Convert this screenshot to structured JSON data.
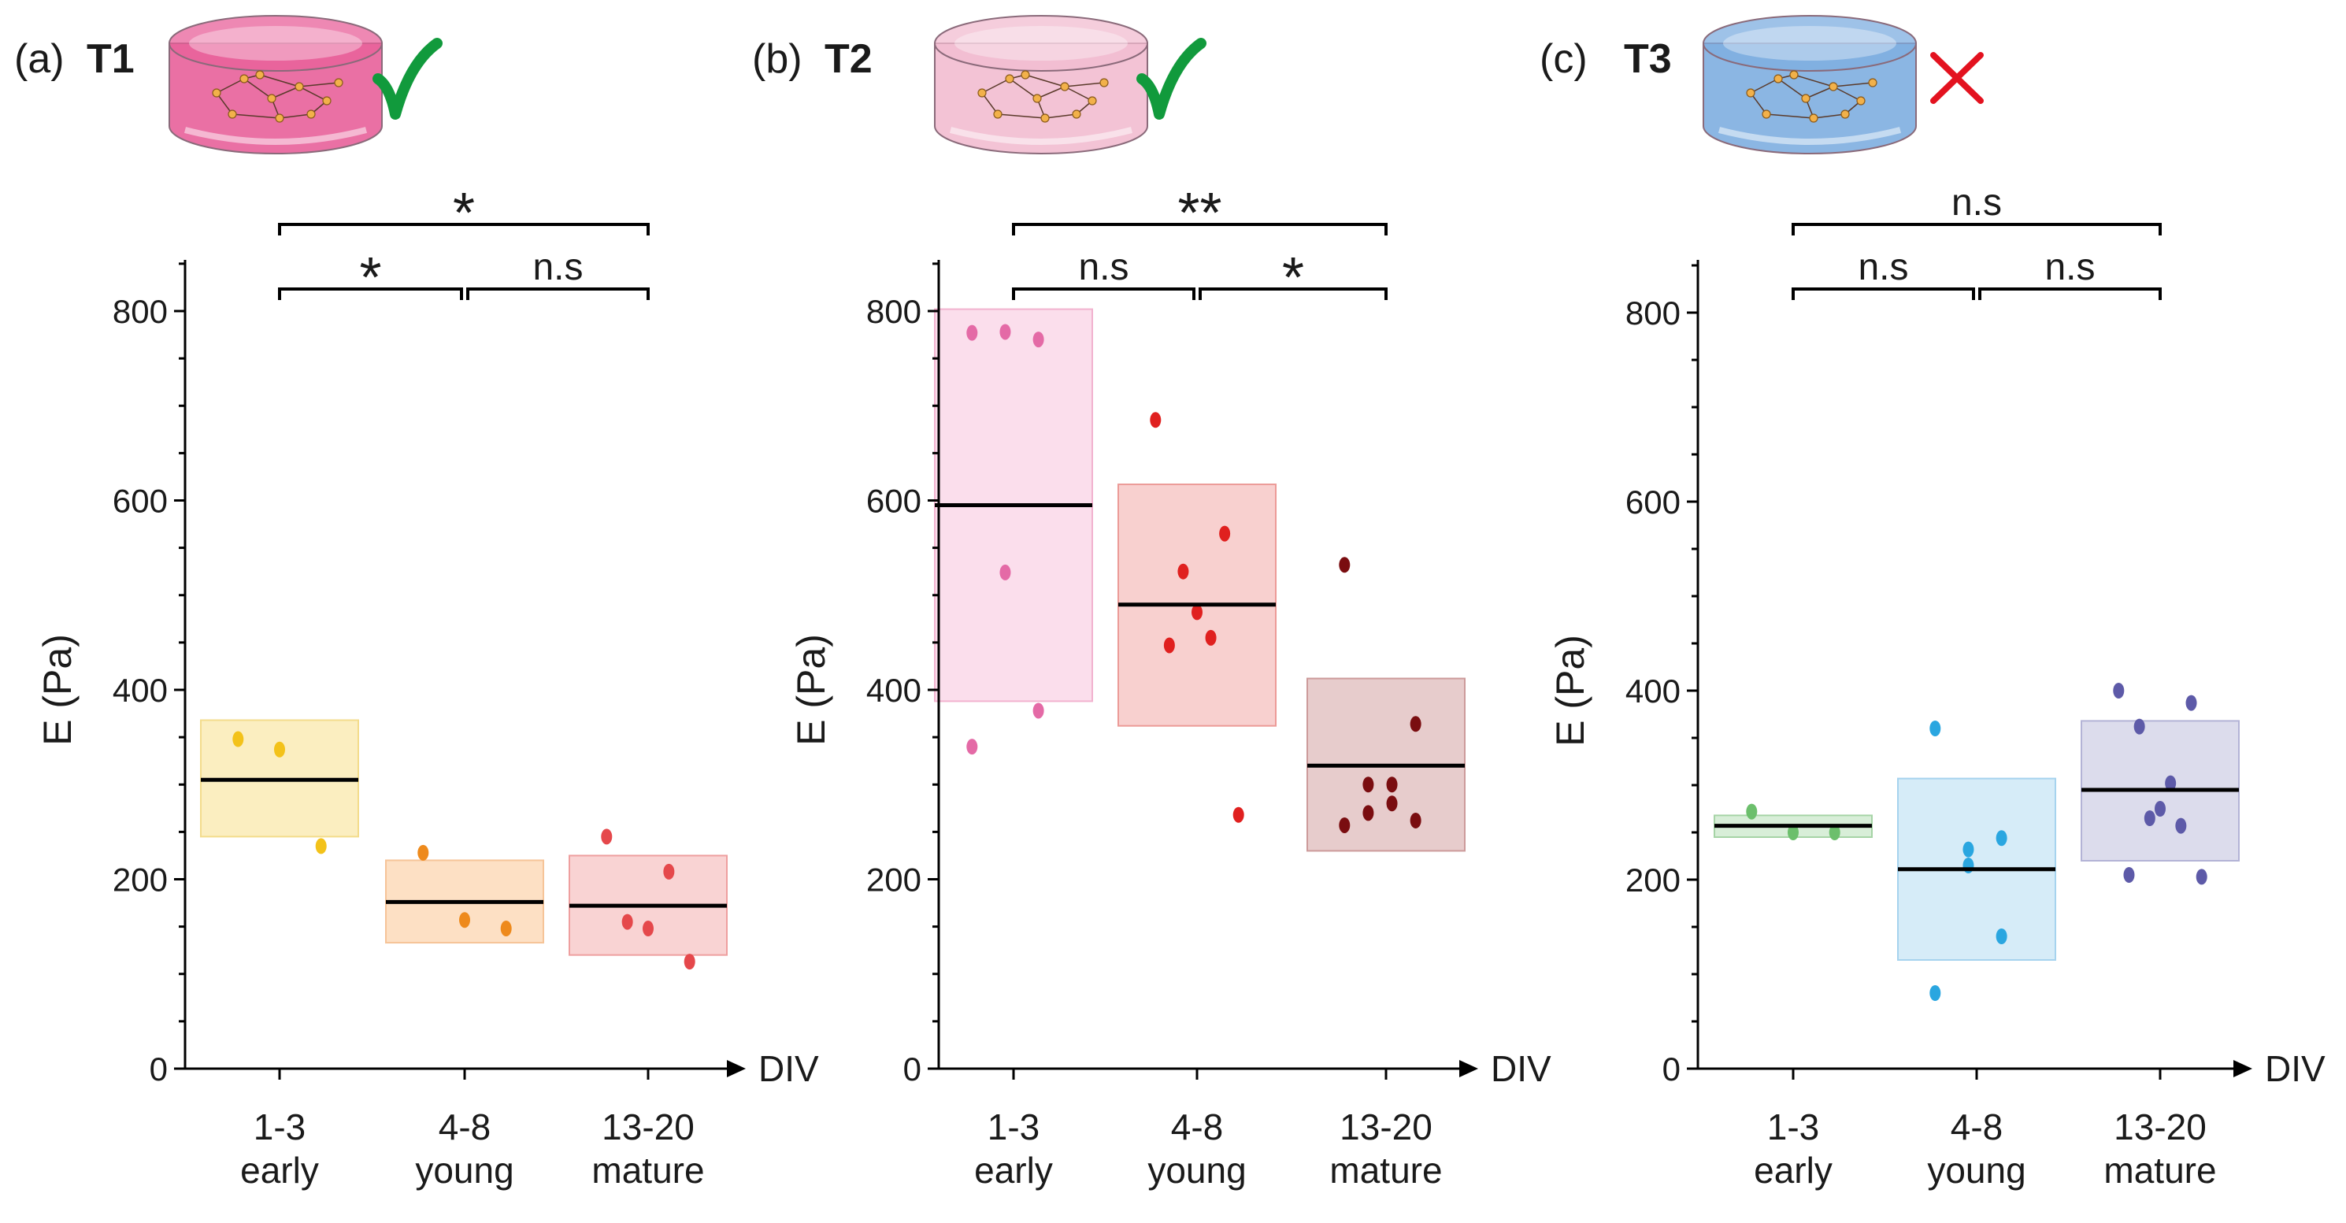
{
  "chart_data": [
    {
      "type": "box-scatter",
      "panel_label": "(a)",
      "title": "T1",
      "status": "accepted",
      "status_icon": "green-checkmark-icon",
      "scaffold_color": "#e8609a",
      "ylabel": "E (Pa)",
      "xlabel": "DIV",
      "ylim": [
        0,
        850
      ],
      "yticks": [
        0,
        200,
        400,
        600,
        800
      ],
      "categories": [
        "1-3",
        "4-8",
        "13-20"
      ],
      "category_sublabels": [
        "early",
        "young",
        "mature"
      ],
      "groups": [
        {
          "category": "1-3",
          "mean": 305,
          "box_low": 245,
          "box_high": 368,
          "fill": "#fbeec0",
          "stroke": "#f3dc8c",
          "point_color": "#f3c21a",
          "points": [
            348,
            337,
            235
          ]
        },
        {
          "category": "4-8",
          "mean": 176,
          "box_low": 133,
          "box_high": 220,
          "fill": "#fde0c4",
          "stroke": "#f6c498",
          "point_color": "#ee8a1c",
          "points": [
            228,
            157,
            148
          ]
        },
        {
          "category": "13-20",
          "mean": 172,
          "box_low": 120,
          "box_high": 225,
          "fill": "#f9d3d3",
          "stroke": "#ee9f9f",
          "point_color": "#e5484b",
          "points": [
            245,
            208,
            148,
            155,
            113
          ]
        }
      ],
      "significance": [
        {
          "from": "1-3",
          "to": "4-8",
          "label": "*",
          "level": 1
        },
        {
          "from": "4-8",
          "to": "13-20",
          "label": "n.s",
          "level": 1
        },
        {
          "from": "1-3",
          "to": "13-20",
          "label": "*",
          "level": 2
        }
      ]
    },
    {
      "type": "box-scatter",
      "panel_label": "(b)",
      "title": "T2",
      "status": "accepted",
      "status_icon": "green-checkmark-icon",
      "scaffold_color": "#f2bcd0",
      "ylabel": "E (Pa)",
      "xlabel": "DIV",
      "ylim": [
        0,
        850
      ],
      "yticks": [
        0,
        200,
        400,
        600,
        800
      ],
      "categories": [
        "1-3",
        "4-8",
        "13-20"
      ],
      "category_sublabels": [
        "early",
        "young",
        "mature"
      ],
      "groups": [
        {
          "category": "1-3",
          "mean": 595,
          "box_low": 388,
          "box_high": 802,
          "fill": "#fbdeec",
          "stroke": "#f2b2cf",
          "point_color": "#e46aa6",
          "points": [
            777,
            770,
            778,
            524,
            378,
            340
          ]
        },
        {
          "category": "4-8",
          "mean": 490,
          "box_low": 362,
          "box_high": 617,
          "fill": "#f8d0cf",
          "stroke": "#ec9a97",
          "point_color": "#e0201f",
          "points": [
            685,
            565,
            525,
            482,
            455,
            447,
            268
          ]
        },
        {
          "category": "13-20",
          "mean": 320,
          "box_low": 230,
          "box_high": 412,
          "fill": "#e7cccc",
          "stroke": "#cc9a9a",
          "point_color": "#7a0d10",
          "points": [
            532,
            364,
            300,
            300,
            280,
            270,
            262,
            257
          ]
        }
      ],
      "significance": [
        {
          "from": "1-3",
          "to": "4-8",
          "label": "n.s",
          "level": 1
        },
        {
          "from": "4-8",
          "to": "13-20",
          "label": "*",
          "level": 1
        },
        {
          "from": "1-3",
          "to": "13-20",
          "label": "**",
          "level": 2
        }
      ]
    },
    {
      "type": "box-scatter",
      "panel_label": "(c)",
      "title": "T3",
      "status": "rejected",
      "status_icon": "red-cross-icon",
      "scaffold_color": "#7eaee0",
      "ylabel": "E (Pa)",
      "xlabel": "DIV",
      "ylim": [
        0,
        850
      ],
      "yticks": [
        0,
        200,
        400,
        600,
        800
      ],
      "categories": [
        "1-3",
        "4-8",
        "13-20"
      ],
      "category_sublabels": [
        "early",
        "young",
        "mature"
      ],
      "groups": [
        {
          "category": "1-3",
          "mean": 257,
          "box_low": 245,
          "box_high": 268,
          "fill": "#d8eed8",
          "stroke": "#a6d4a6",
          "point_color": "#6cbf6c",
          "points": [
            272,
            250,
            250
          ]
        },
        {
          "category": "4-8",
          "mean": 211,
          "box_low": 115,
          "box_high": 307,
          "fill": "#d6ecf8",
          "stroke": "#a6d3ee",
          "point_color": "#2aa6e0",
          "points": [
            360,
            244,
            232,
            215,
            140,
            80
          ]
        },
        {
          "category": "13-20",
          "mean": 295,
          "box_low": 220,
          "box_high": 368,
          "fill": "#dcdcec",
          "stroke": "#b3b3d6",
          "point_color": "#5d5aa8",
          "points": [
            400,
            387,
            362,
            302,
            275,
            265,
            257,
            205,
            203
          ]
        }
      ],
      "significance": [
        {
          "from": "1-3",
          "to": "4-8",
          "label": "n.s",
          "level": 1
        },
        {
          "from": "4-8",
          "to": "13-20",
          "label": "n.s",
          "level": 1
        },
        {
          "from": "1-3",
          "to": "13-20",
          "label": "n.s",
          "level": 2
        }
      ]
    }
  ]
}
